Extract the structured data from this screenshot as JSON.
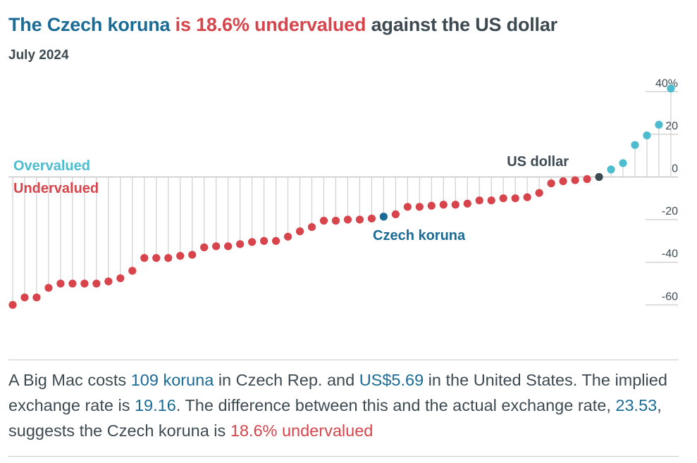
{
  "title": {
    "part1": "The Czech koruna",
    "part2": "is 18.6% undervalued",
    "part3": "against the US dollar"
  },
  "subtitle": "July 2024",
  "colors": {
    "over": "#4cbcce",
    "under": "#d7444b",
    "highlight": "#1a6b95",
    "base": "#3d4a52",
    "stem": "#cfcfcf",
    "grid": "#bdbdbd"
  },
  "chart_data": {
    "type": "scatter",
    "style": "lollipop",
    "ylim": [
      -65,
      45
    ],
    "yticks": [
      40,
      20,
      0,
      -20,
      -40,
      -60
    ],
    "ytick_labels": [
      "40%",
      "20",
      "0",
      "-20",
      "-40",
      "-60"
    ],
    "label_over": "Overvalued",
    "label_under": "Undervalued",
    "annotations": {
      "highlight": "Czech koruna",
      "base": "US dollar"
    },
    "values": [
      -60,
      -56.5,
      -56.5,
      -52,
      -50,
      -50,
      -50,
      -50,
      -49,
      -47.5,
      -44,
      -38,
      -38,
      -38,
      -37,
      -36.5,
      -33,
      -32.5,
      -32.5,
      -31.5,
      -30.5,
      -30,
      -30,
      -28,
      -25.5,
      -23.5,
      -20.5,
      -20.5,
      -20,
      -20,
      -19.5,
      -18.6,
      -17.5,
      -14,
      -14,
      -13.5,
      -13,
      -13,
      -12.5,
      -11,
      -11,
      -10,
      -10,
      -9.5,
      -7.5,
      -3,
      -2,
      -1.5,
      -1,
      0,
      3.5,
      6.5,
      15,
      19.5,
      24.5,
      41.5
    ],
    "highlight_index": 31,
    "base_index": 49
  },
  "description": {
    "s1": "A Big Mac costs ",
    "local_price": "109 koruna",
    "s2": " in Czech Rep. and ",
    "us_price": "US$5.69",
    "s3": " in the United States. The implied exchange rate is ",
    "implied_rate": "19.16",
    "s4": ". The difference between this and the actual exchange rate, ",
    "actual_rate": "23.53",
    "s5": ", suggests the Czech koruna is ",
    "valuation": "18.6% undervalued"
  }
}
